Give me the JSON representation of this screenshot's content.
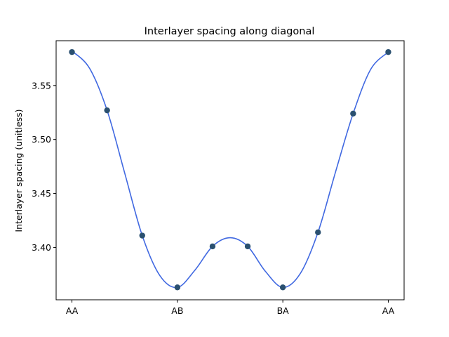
{
  "chart_data": {
    "type": "scatter",
    "title": "Interlayer spacing along diagonal",
    "xlabel": "",
    "ylabel": "Interlayer spacing (unitless)",
    "x_tick_labels": [
      "AA",
      "AB",
      "BA",
      "AA"
    ],
    "x_tick_positions": [
      0,
      3,
      6,
      9
    ],
    "y_ticks": [
      3.4,
      3.45,
      3.5,
      3.55
    ],
    "y_tick_labels": [
      "3.40",
      "3.45",
      "3.50",
      "3.55"
    ],
    "xlim": [
      -0.45,
      9.45
    ],
    "ylim": [
      3.3515,
      3.5915
    ],
    "grid": false,
    "series": [
      {
        "kind": "points",
        "x": [
          0,
          1,
          2,
          3,
          4,
          5,
          6,
          7,
          8,
          9
        ],
        "values": [
          3.581,
          3.527,
          3.411,
          3.363,
          3.401,
          3.401,
          3.363,
          3.414,
          3.524,
          3.581
        ],
        "color": "#2a5070"
      },
      {
        "kind": "fit",
        "x": [
          0,
          0.5,
          1,
          1.5,
          2,
          2.5,
          3,
          3.5,
          4,
          4.5,
          5,
          5.5,
          6,
          6.5,
          7,
          7.5,
          8,
          8.5,
          9
        ],
        "values": [
          3.582,
          3.566,
          3.527,
          3.469,
          3.411,
          3.374,
          3.363,
          3.379,
          3.401,
          3.409,
          3.401,
          3.378,
          3.363,
          3.376,
          3.414,
          3.47,
          3.524,
          3.565,
          3.581
        ],
        "color": "#4169e1"
      }
    ]
  }
}
